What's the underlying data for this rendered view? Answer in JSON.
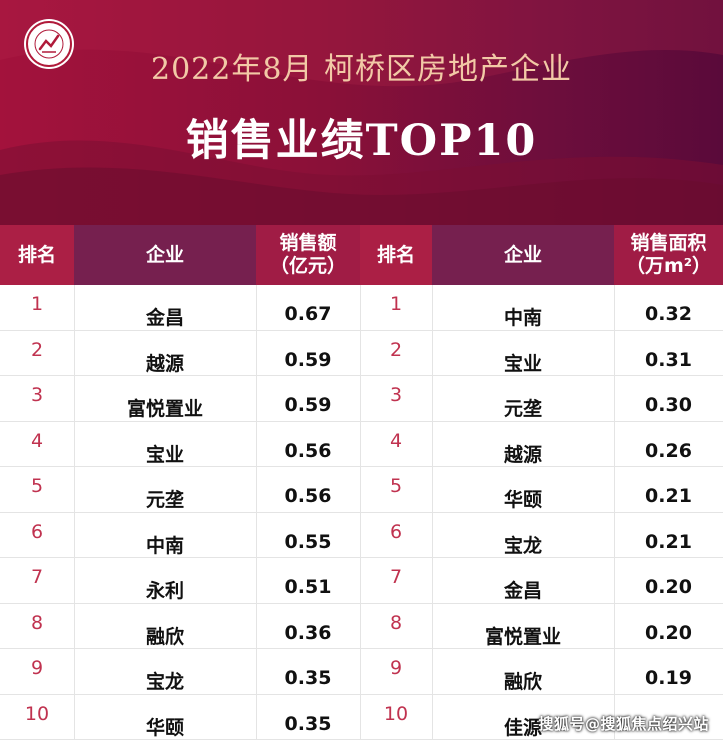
{
  "header": {
    "title_line1": "2022年8月  柯桥区房地产企业",
    "title_line2": "销售业绩TOP10",
    "logo": {
      "icon": "company-seal-logo",
      "ring_text": "CHINA INDEX ACADEMY"
    }
  },
  "left_table": {
    "headers": {
      "rank": "排名",
      "company": "企业",
      "value": "销售额\n（亿元）"
    },
    "rows": [
      {
        "rank": "1",
        "company": "金昌",
        "value": "0.67"
      },
      {
        "rank": "2",
        "company": "越源",
        "value": "0.59"
      },
      {
        "rank": "3",
        "company": "富悦置业",
        "value": "0.59"
      },
      {
        "rank": "4",
        "company": "宝业",
        "value": "0.56"
      },
      {
        "rank": "5",
        "company": "元垄",
        "value": "0.56"
      },
      {
        "rank": "6",
        "company": "中南",
        "value": "0.55"
      },
      {
        "rank": "7",
        "company": "永利",
        "value": "0.51"
      },
      {
        "rank": "8",
        "company": "融欣",
        "value": "0.36"
      },
      {
        "rank": "9",
        "company": "宝龙",
        "value": "0.35"
      },
      {
        "rank": "10",
        "company": "华颐",
        "value": "0.35"
      }
    ]
  },
  "right_table": {
    "headers": {
      "rank": "排名",
      "company": "企业",
      "value": "销售面积\n（万m²）"
    },
    "rows": [
      {
        "rank": "1",
        "company": "中南",
        "value": "0.32"
      },
      {
        "rank": "2",
        "company": "宝业",
        "value": "0.31"
      },
      {
        "rank": "3",
        "company": "元垄",
        "value": "0.30"
      },
      {
        "rank": "4",
        "company": "越源",
        "value": "0.26"
      },
      {
        "rank": "5",
        "company": "华颐",
        "value": "0.21"
      },
      {
        "rank": "6",
        "company": "宝龙",
        "value": "0.21"
      },
      {
        "rank": "7",
        "company": "金昌",
        "value": "0.20"
      },
      {
        "rank": "8",
        "company": "富悦置业",
        "value": "0.20"
      },
      {
        "rank": "9",
        "company": "融欣",
        "value": "0.19"
      },
      {
        "rank": "10",
        "company": "佳源",
        "value": ""
      }
    ]
  },
  "watermark": "搜狐号@搜狐焦点绍兴站",
  "colors": {
    "banner_start": "#a3123c",
    "banner_end": "#5a0a3a",
    "rank_header": "#ab1f45",
    "company_header": "#76204f",
    "rank_text": "#c0324f",
    "title1_text": "#f2c9a6"
  }
}
